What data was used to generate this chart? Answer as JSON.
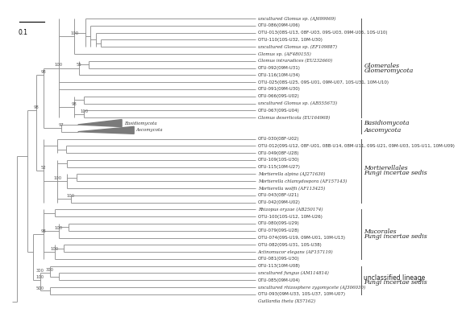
{
  "bg_color": "#ffffff",
  "tree_color": "#888888",
  "label_color": "#333333",
  "bootstrap_color": "#555555",
  "leaf_fontsize": 4.0,
  "bootstrap_fontsize": 3.8,
  "bracket_fontsize": 5.5,
  "scale_label": "0.1",
  "scale_fontsize": 5.5,
  "leaves": [
    "uncultured Glomus sp. (AJ699069)",
    "OTU-086(09M-U06)",
    "OTU-013(08S-U13, 08F-U03, 09S-U03, 09M-U05, 10S-U10)",
    "OTU-110(10S-U32, 10M-U30)",
    "uncultured Glomus sp. (EF109887)",
    "Glomus sp. (AF480155)",
    "Glomus intraradices (EU232660)",
    "OTU-092(09M-U31)",
    "OTU-116(10M-U34)",
    "OTU-025(08S-U25, 09S-U01, 09M-U07, 10S-U31, 10M-U10)",
    "OTU-091(09M-U30)",
    "OTU-066(09S-U02)",
    "uncultured Glomus sp. (AB555673)",
    "OTU-067(09S-U04)",
    "Glomus deserticola (EU164968)",
    "_Basidiomycota_",
    "_Ascomycota_",
    "OTU-030(08F-U02)",
    "OTU-012(09S-U12, 08F-U01, 08B-U14, 08M-U11, 09S-U21, 09M-U03, 10S-U11, 10M-U09)",
    "OTU-049(08F-U28)",
    "OTU-109(10S-U30)",
    "OTU-115(10M-U27)",
    "Mortierella alpina (AJ271630)",
    "Mortierella chlamydospora (AF157143)",
    "Mortierella wolfii (AF113425)",
    "OTU-043(08F-U21)",
    "OTU-042(09M-U02)",
    "Rhizopus oryzae (AB250174)",
    "OTU-100(10S-U12, 10M-U26)",
    "OTU-080(09S-U29)",
    "OTU-079(09S-U28)",
    "OTU-074(09S-U19, 09M-U01, 10M-U13)",
    "OTU-082(09S-U31, 10S-U38)",
    "Actinomucor elegans (AF157119)",
    "OTU-081(09S-U30)",
    "OTU-113(10M-U08)",
    "uncultured fungus (AM114814)",
    "OTU-085(09M-U04)",
    "uncultured rhizosphere zygomycete (AJ306030)",
    "OTU-093(09M-U33, 10S-U37, 10M-U07)",
    "Guillardia theta (X57162)"
  ],
  "italic_leaves": [
    "uncultured Glomus sp. (AJ699069)",
    "Glomus sp. (AF480155)",
    "Glomus intraradices (EU232660)",
    "uncultured Glomus sp. (EF109887)",
    "uncultured Glomus sp. (AB555673)",
    "Glomus deserticola (EU164968)",
    "Mortierella alpina (AJ271630)",
    "Mortierella chlamydospora (AF157143)",
    "Mortierella wolfii (AF113425)",
    "Rhizopus oryzae (AB250174)",
    "Actinomucor elegans (AF157119)",
    "uncultured fungus (AM114814)",
    "uncultured rhizosphere zygomycete (AJ306030)",
    "Guillardia theta (X57162)",
    "Basidiomycota",
    "Ascomycota"
  ],
  "brackets": [
    {
      "y1_leaf": "uncultured Glomus sp. (AJ699069)",
      "y2_leaf": "Glomus deserticola (EU164968)",
      "lines": [
        "Glomeromycota",
        "Glomerales"
      ]
    },
    {
      "y1_leaf": "_Basidiomycota_",
      "y2_leaf": "_Basidiomycota_",
      "lines": [
        "Basidiomycota"
      ]
    },
    {
      "y1_leaf": "_Ascomycota_",
      "y2_leaf": "_Ascomycota_",
      "lines": [
        "Ascomycota"
      ]
    },
    {
      "y1_leaf": "OTU-030(08F-U02)",
      "y2_leaf": "OTU-042(09M-U02)",
      "lines": [
        "Fungi incertae sedis",
        "Mortierellales"
      ]
    },
    {
      "y1_leaf": "Rhizopus oryzae (AB250174)",
      "y2_leaf": "OTU-081(09S-U30)",
      "lines": [
        "Fungi incertae sedis",
        "Mucorales"
      ]
    },
    {
      "y1_leaf": "OTU-113(10M-U08)",
      "y2_leaf": "OTU-093(09M-U33, 10S-U37, 10M-U07)",
      "lines": [
        "Fungi incertae sedis",
        "unclassified lineage"
      ]
    }
  ]
}
